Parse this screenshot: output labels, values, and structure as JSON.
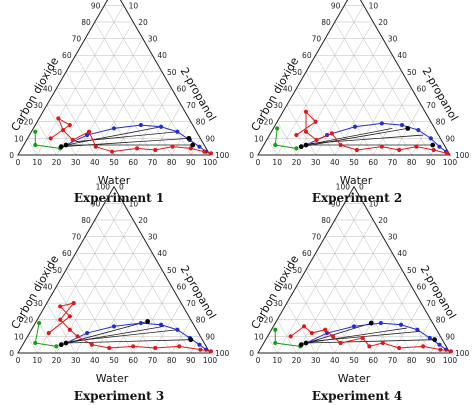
{
  "figure": {
    "axis_labels": {
      "left": "Carbon dioxide",
      "right": "2-propanol",
      "bottom": "Water"
    },
    "ticks": [
      "0",
      "10",
      "20",
      "30",
      "40",
      "50",
      "60",
      "70",
      "80",
      "90",
      "100"
    ],
    "colors": {
      "frame": "#222222",
      "grid": "#bbbbbb",
      "tie_line": "#222222",
      "blue_series": "#1f2fd6",
      "red_series": "#e01818",
      "green_series": "#14a014",
      "black_points": "#000000"
    }
  },
  "chart_data": [
    {
      "type": "scatter",
      "subtype": "ternary",
      "title": "Experiment 1",
      "axes": {
        "left": "Carbon dioxide",
        "right": "2-propanol",
        "bottom": "Water"
      },
      "grid": true,
      "series": [
        {
          "color": "blue",
          "points": [
            [
              22,
              6
            ],
            [
              30,
              12
            ],
            [
              42,
              16
            ],
            [
              55,
              18
            ],
            [
              66,
              17
            ],
            [
              76,
              14
            ],
            [
              85,
              9
            ],
            [
              92,
              5
            ],
            [
              97,
              2
            ]
          ]
        },
        {
          "color": "red",
          "points": [
            [
              12,
              10
            ],
            [
              18,
              18
            ],
            [
              10,
              22
            ],
            [
              16,
              15
            ],
            [
              24,
              9
            ],
            [
              30,
              14
            ],
            [
              38,
              5
            ],
            [
              48,
              2
            ],
            [
              60,
              4
            ],
            [
              70,
              3
            ],
            [
              78,
              5
            ],
            [
              88,
              4
            ],
            [
              96,
              2
            ],
            [
              100,
              1
            ]
          ]
        },
        {
          "color": "green",
          "points": [
            [
              2,
              14
            ],
            [
              6,
              6
            ],
            [
              20,
              4
            ]
          ]
        },
        {
          "color": "black",
          "points": [
            [
              20,
              5
            ],
            [
              22,
              6
            ],
            [
              84,
              10
            ],
            [
              88,
              6
            ]
          ]
        }
      ],
      "tie_lines": [
        [
          [
            20,
            5
          ],
          [
            84,
            10
          ]
        ],
        [
          [
            22,
            6
          ],
          [
            88,
            6
          ]
        ],
        [
          [
            26,
            8
          ],
          [
            76,
            14
          ]
        ],
        [
          [
            22,
            6
          ],
          [
            66,
            17
          ]
        ]
      ]
    },
    {
      "type": "scatter",
      "subtype": "ternary",
      "title": "Experiment 2",
      "axes": {
        "left": "Carbon dioxide",
        "right": "2-propanol",
        "bottom": "Water"
      },
      "grid": true,
      "series": [
        {
          "color": "blue",
          "points": [
            [
              22,
              6
            ],
            [
              30,
              12
            ],
            [
              42,
              17
            ],
            [
              55,
              19
            ],
            [
              66,
              18
            ],
            [
              76,
              15
            ],
            [
              85,
              10
            ],
            [
              92,
              5
            ],
            [
              97,
              2
            ]
          ]
        },
        {
          "color": "red",
          "points": [
            [
              14,
              12
            ],
            [
              20,
              20
            ],
            [
              12,
              26
            ],
            [
              18,
              14
            ],
            [
              26,
              9
            ],
            [
              32,
              13
            ],
            [
              40,
              6
            ],
            [
              50,
              3
            ],
            [
              62,
              5
            ],
            [
              72,
              3
            ],
            [
              80,
              5
            ],
            [
              90,
              3
            ],
            [
              98,
              1
            ]
          ]
        },
        {
          "color": "green",
          "points": [
            [
              2,
              16
            ],
            [
              6,
              6
            ],
            [
              18,
              4
            ]
          ]
        },
        {
          "color": "black",
          "points": [
            [
              20,
              5
            ],
            [
              22,
              6
            ],
            [
              70,
              16
            ],
            [
              88,
              6
            ]
          ]
        }
      ],
      "tie_lines": [
        [
          [
            20,
            5
          ],
          [
            70,
            16
          ]
        ],
        [
          [
            22,
            6
          ],
          [
            88,
            6
          ]
        ],
        [
          [
            24,
            7
          ],
          [
            80,
            12
          ]
        ],
        [
          [
            22,
            6
          ],
          [
            62,
            16
          ]
        ]
      ]
    },
    {
      "type": "scatter",
      "subtype": "ternary",
      "title": "Experiment 3",
      "axes": {
        "left": "Carbon dioxide",
        "right": "2-propanol",
        "bottom": "Water"
      },
      "grid": true,
      "series": [
        {
          "color": "blue",
          "points": [
            [
              22,
              6
            ],
            [
              30,
              12
            ],
            [
              42,
              16
            ],
            [
              55,
              18
            ],
            [
              66,
              17
            ],
            [
              76,
              14
            ],
            [
              85,
              9
            ],
            [
              92,
              5
            ],
            [
              97,
              2
            ]
          ]
        },
        {
          "color": "red",
          "points": [
            [
              10,
              12
            ],
            [
              16,
              22
            ],
            [
              8,
              28
            ],
            [
              14,
              30
            ],
            [
              12,
              20
            ],
            [
              20,
              14
            ],
            [
              26,
              10
            ],
            [
              36,
              5
            ],
            [
              46,
              3
            ],
            [
              58,
              4
            ],
            [
              70,
              3
            ],
            [
              82,
              4
            ],
            [
              94,
              2
            ],
            [
              100,
              1
            ]
          ]
        },
        {
          "color": "green",
          "points": [
            [
              2,
              18
            ],
            [
              6,
              6
            ],
            [
              18,
              4
            ]
          ]
        },
        {
          "color": "black",
          "points": [
            [
              20,
              5
            ],
            [
              22,
              6
            ],
            [
              58,
              19
            ],
            [
              86,
              8
            ]
          ]
        }
      ],
      "tie_lines": [
        [
          [
            20,
            5
          ],
          [
            58,
            19
          ]
        ],
        [
          [
            22,
            6
          ],
          [
            86,
            8
          ]
        ],
        [
          [
            24,
            7
          ],
          [
            76,
            14
          ]
        ],
        [
          [
            22,
            6
          ],
          [
            68,
            16
          ]
        ]
      ]
    },
    {
      "type": "scatter",
      "subtype": "ternary",
      "title": "Experiment 4",
      "axes": {
        "left": "Carbon dioxide",
        "right": "2-propanol",
        "bottom": "Water"
      },
      "grid": true,
      "series": [
        {
          "color": "blue",
          "points": [
            [
              22,
              6
            ],
            [
              30,
              12
            ],
            [
              42,
              16
            ],
            [
              55,
              18
            ],
            [
              66,
              17
            ],
            [
              76,
              14
            ],
            [
              85,
              9
            ],
            [
              92,
              5
            ],
            [
              97,
              2
            ]
          ]
        },
        {
          "color": "red",
          "points": [
            [
              12,
              10
            ],
            [
              16,
              16
            ],
            [
              22,
              12
            ],
            [
              28,
              14
            ],
            [
              34,
              10
            ],
            [
              40,
              6
            ],
            [
              50,
              9
            ],
            [
              56,
              4
            ],
            [
              62,
              6
            ],
            [
              72,
              3
            ],
            [
              84,
              4
            ],
            [
              94,
              2
            ],
            [
              100,
              1
            ]
          ]
        },
        {
          "color": "green",
          "points": [
            [
              2,
              14
            ],
            [
              6,
              6
            ],
            [
              20,
              4
            ]
          ]
        },
        {
          "color": "black",
          "points": [
            [
              20,
              5
            ],
            [
              22,
              6
            ],
            [
              50,
              18
            ],
            [
              88,
              8
            ]
          ]
        }
      ],
      "tie_lines": [
        [
          [
            20,
            5
          ],
          [
            50,
            18
          ]
        ],
        [
          [
            22,
            6
          ],
          [
            88,
            8
          ]
        ],
        [
          [
            24,
            7
          ],
          [
            78,
            13
          ]
        ],
        [
          [
            22,
            6
          ],
          [
            70,
            15
          ]
        ]
      ]
    }
  ]
}
